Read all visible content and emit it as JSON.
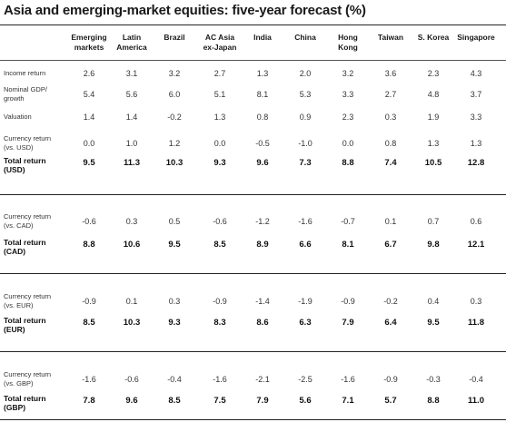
{
  "title": "Asia and emerging-market equities: five-year forecast (%)",
  "columns": [
    {
      "lines": [
        "Emerging",
        "markets"
      ]
    },
    {
      "lines": [
        "Latin",
        "America"
      ]
    },
    {
      "lines": [
        "Brazil"
      ]
    },
    {
      "lines": [
        "AC Asia",
        "ex-Japan"
      ]
    },
    {
      "lines": [
        "India"
      ]
    },
    {
      "lines": [
        "China"
      ]
    },
    {
      "lines": [
        "Hong",
        "Kong"
      ]
    },
    {
      "lines": [
        "Taiwan"
      ]
    },
    {
      "lines": [
        "S. Korea"
      ]
    },
    {
      "lines": [
        "Singapore"
      ]
    }
  ],
  "sections": [
    {
      "rows": [
        {
          "label": [
            "Income return"
          ],
          "bold": false,
          "values": [
            "2.6",
            "3.1",
            "3.2",
            "2.7",
            "1.3",
            "2.0",
            "3.2",
            "3.6",
            "2.3",
            "4.3"
          ]
        },
        {
          "label": [
            "Nominal GDP/",
            "growth"
          ],
          "bold": false,
          "values": [
            "5.4",
            "5.6",
            "6.0",
            "5.1",
            "8.1",
            "5.3",
            "3.3",
            "2.7",
            "4.8",
            "3.7"
          ]
        },
        {
          "label": [
            "Valuation"
          ],
          "bold": false,
          "values": [
            "1.4",
            "1.4",
            "-0.2",
            "1.3",
            "0.8",
            "0.9",
            "2.3",
            "0.3",
            "1.9",
            "3.3"
          ]
        },
        {
          "label": [
            "Currency return",
            "(vs. USD)"
          ],
          "bold": false,
          "values": [
            "0.0",
            "1.0",
            "1.2",
            "0.0",
            "-0.5",
            "-1.0",
            "0.0",
            "0.8",
            "1.3",
            "1.3"
          ]
        },
        {
          "label": [
            "Total return",
            "(USD)"
          ],
          "bold": true,
          "values": [
            "9.5",
            "11.3",
            "10.3",
            "9.3",
            "9.6",
            "7.3",
            "8.8",
            "7.4",
            "10.5",
            "12.8"
          ]
        }
      ]
    },
    {
      "rows": [
        {
          "label": [
            "Currency return",
            "(vs. CAD)"
          ],
          "bold": false,
          "values": [
            "-0.6",
            "0.3",
            "0.5",
            "-0.6",
            "-1.2",
            "-1.6",
            "-0.7",
            "0.1",
            "0.7",
            "0.6"
          ]
        },
        {
          "label": [
            "Total return",
            "(CAD)"
          ],
          "bold": true,
          "values": [
            "8.8",
            "10.6",
            "9.5",
            "8.5",
            "8.9",
            "6.6",
            "8.1",
            "6.7",
            "9.8",
            "12.1"
          ]
        }
      ]
    },
    {
      "rows": [
        {
          "label": [
            "Currency return",
            "(vs. EUR)"
          ],
          "bold": false,
          "values": [
            "-0.9",
            "0.1",
            "0.3",
            "-0.9",
            "-1.4",
            "-1.9",
            "-0.9",
            "-0.2",
            "0.4",
            "0.3"
          ]
        },
        {
          "label": [
            "Total return",
            "(EUR)"
          ],
          "bold": true,
          "values": [
            "8.5",
            "10.3",
            "9.3",
            "8.3",
            "8.6",
            "6.3",
            "7.9",
            "6.4",
            "9.5",
            "11.8"
          ]
        }
      ]
    },
    {
      "rows": [
        {
          "label": [
            "Currency return",
            "(vs. GBP)"
          ],
          "bold": false,
          "values": [
            "-1.6",
            "-0.6",
            "-0.4",
            "-1.6",
            "-2.1",
            "-2.5",
            "-1.6",
            "-0.9",
            "-0.3",
            "-0.4"
          ]
        },
        {
          "label": [
            "Total return",
            "(GBP)"
          ],
          "bold": true,
          "values": [
            "7.8",
            "9.6",
            "8.5",
            "7.5",
            "7.9",
            "5.6",
            "7.1",
            "5.7",
            "8.8",
            "11.0"
          ]
        }
      ]
    }
  ]
}
